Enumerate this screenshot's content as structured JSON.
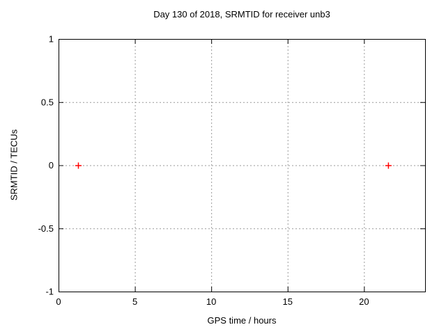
{
  "chart_data": {
    "type": "scatter",
    "title": "Day 130 of 2018, SRMTID for receiver unb3",
    "xlabel": "GPS time / hours",
    "ylabel": "SRMTID / TECUs",
    "xlim": [
      0,
      24
    ],
    "ylim": [
      -1,
      1
    ],
    "xticks": [
      0,
      5,
      10,
      15,
      20
    ],
    "xtick_labels": [
      "0",
      "5",
      "10",
      "15",
      "20"
    ],
    "yticks": [
      1,
      0.5,
      0,
      -0.5,
      -1
    ],
    "ytick_labels": [
      "1",
      "0.5",
      "0",
      "-0.5",
      "-1"
    ],
    "grid": true,
    "legend": "none",
    "series": [
      {
        "name": "SRMTID",
        "marker": "plus",
        "color": "#ff0000",
        "points": [
          {
            "x": 1.3,
            "y": 0.0
          },
          {
            "x": 21.6,
            "y": 0.0
          }
        ]
      }
    ]
  },
  "colors": {
    "background": "#ffffff",
    "border": "#000000",
    "grid": "#9a9a9a",
    "tick": "#000000",
    "text": "#000000",
    "marker": "#ff0000"
  }
}
